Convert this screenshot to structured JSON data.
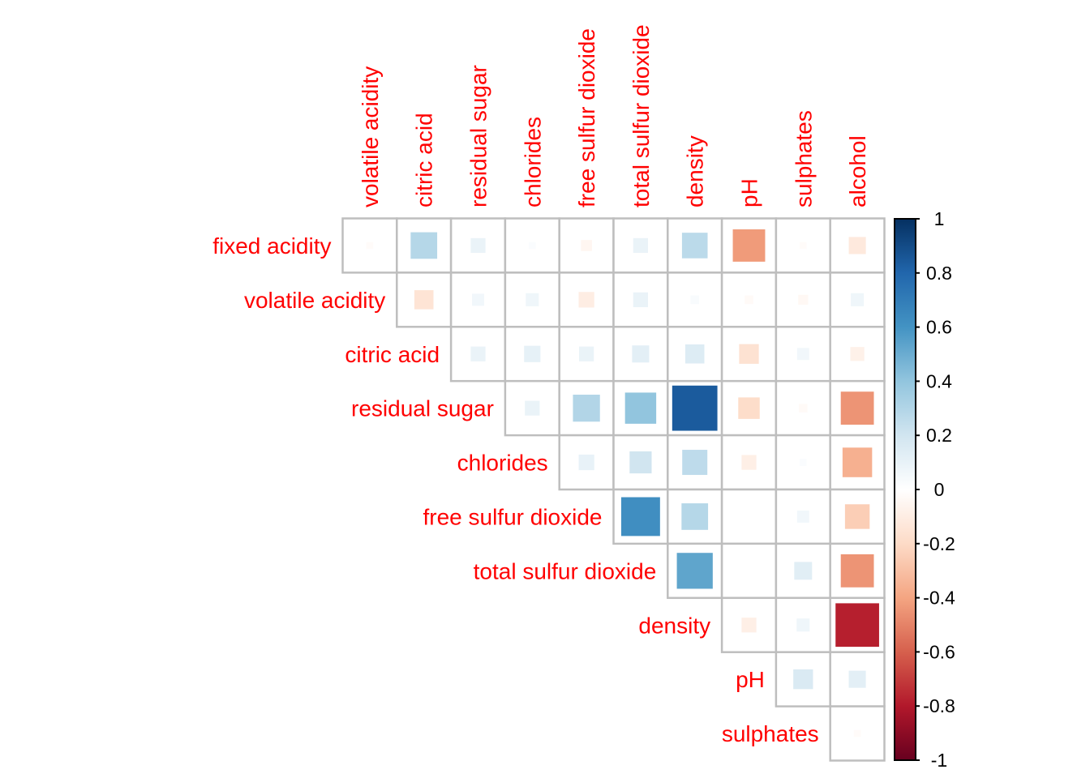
{
  "chart_data": {
    "type": "heatmap",
    "subtype": "correlation-matrix-upper-triangle",
    "method": "square",
    "title": "",
    "row_labels": [
      "fixed acidity",
      "volatile acidity",
      "citric acid",
      "residual sugar",
      "chlorides",
      "free sulfur dioxide",
      "total sulfur dioxide",
      "density",
      "pH",
      "sulphates"
    ],
    "col_labels": [
      "volatile acidity",
      "citric acid",
      "residual sugar",
      "chlorides",
      "free sulfur dioxide",
      "total sulfur dioxide",
      "density",
      "pH",
      "sulphates",
      "alcohol"
    ],
    "matrix": [
      [
        -0.02,
        0.29,
        0.09,
        0.02,
        -0.05,
        0.09,
        0.27,
        -0.43,
        -0.02,
        -0.12
      ],
      [
        null,
        -0.15,
        0.06,
        0.07,
        -0.1,
        0.09,
        0.03,
        -0.03,
        -0.04,
        0.07
      ],
      [
        null,
        null,
        0.09,
        0.11,
        0.09,
        0.12,
        0.15,
        -0.16,
        0.06,
        -0.08
      ],
      [
        null,
        null,
        null,
        0.09,
        0.3,
        0.4,
        0.84,
        -0.19,
        -0.03,
        -0.45
      ],
      [
        null,
        null,
        null,
        null,
        0.1,
        0.2,
        0.26,
        -0.09,
        0.02,
        -0.36
      ],
      [
        null,
        null,
        null,
        null,
        null,
        0.62,
        0.29,
        0.0,
        0.06,
        -0.25
      ],
      [
        null,
        null,
        null,
        null,
        null,
        null,
        0.53,
        0.0,
        0.13,
        -0.45
      ],
      [
        null,
        null,
        null,
        null,
        null,
        null,
        null,
        -0.09,
        0.07,
        -0.78
      ],
      [
        null,
        null,
        null,
        null,
        null,
        null,
        null,
        null,
        0.16,
        0.12
      ],
      [
        null,
        null,
        null,
        null,
        null,
        null,
        null,
        null,
        null,
        -0.02
      ]
    ],
    "colorbar": {
      "range": [
        -1,
        1
      ],
      "ticks": [
        "1",
        "0.8",
        "0.6",
        "0.4",
        "0.2",
        "0",
        "-0.2",
        "-0.4",
        "-0.6",
        "-0.8",
        "-1"
      ],
      "tick_values": [
        1,
        0.8,
        0.6,
        0.4,
        0.2,
        0,
        -0.2,
        -0.4,
        -0.6,
        -0.8,
        -1
      ],
      "palette": [
        "#67001F",
        "#B2182B",
        "#D6604D",
        "#F4A582",
        "#FDDBC7",
        "#FFFFFF",
        "#D1E5F0",
        "#92C5DE",
        "#4393C3",
        "#2166AC",
        "#053061"
      ]
    },
    "label_color": "#FF0000",
    "grid_color": "#BEBEBE",
    "legend": "right"
  }
}
